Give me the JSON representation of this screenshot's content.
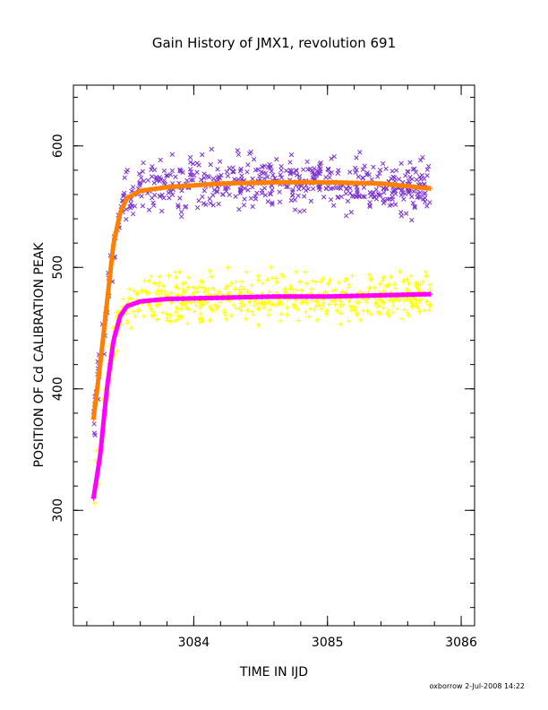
{
  "chart_data": {
    "type": "scatter",
    "title": "Gain History of JMX1, revolution 691",
    "xlabel": "TIME IN IJD",
    "ylabel": "POSITION OF Cd CALIBRATION PEAK",
    "footer": "oxborrow  2-Jul-2008 14:22",
    "xlim": [
      3083.1,
      3086.1
    ],
    "ylim": [
      205,
      650
    ],
    "x_ticks": [
      3084,
      3085,
      3086
    ],
    "x_tick_labels": [
      "3084",
      "3085",
      "3086"
    ],
    "y_ticks": [
      300,
      400,
      500,
      600
    ],
    "y_tick_labels": [
      "300",
      "400",
      "500",
      "600"
    ],
    "x_minor_step": 0.2,
    "y_minor_step": 20,
    "grid": false,
    "series": [
      {
        "marker": "x",
        "color": "#7a2fd0",
        "x_range": [
          3083.25,
          3085.77
        ],
        "n_points": 560,
        "spread": 11,
        "fit": {
          "x": [
            3083.25,
            3083.3,
            3083.35,
            3083.4,
            3083.45,
            3083.5,
            3083.6,
            3083.8,
            3084.2,
            3084.6,
            3085.0,
            3085.4,
            3085.77
          ],
          "y": [
            375,
            420,
            470,
            520,
            545,
            557,
            563,
            566,
            569,
            570,
            570,
            569,
            565
          ]
        }
      },
      {
        "marker": "+",
        "color": "#ffff00",
        "x_range": [
          3083.25,
          3085.77
        ],
        "n_points": 560,
        "spread": 10,
        "fit": {
          "x": [
            3083.25,
            3083.3,
            3083.35,
            3083.4,
            3083.45,
            3083.5,
            3083.6,
            3083.8,
            3084.2,
            3084.6,
            3085.0,
            3085.4,
            3085.77
          ],
          "y": [
            310,
            345,
            400,
            440,
            460,
            468,
            472,
            474,
            475,
            476,
            476,
            477,
            478
          ]
        }
      }
    ],
    "fit_curves": [
      {
        "color": "#ff8000",
        "x_range": [
          3083.25,
          3085.77
        ],
        "x": [
          3083.25,
          3083.3,
          3083.35,
          3083.4,
          3083.45,
          3083.5,
          3083.6,
          3083.8,
          3084.2,
          3084.6,
          3085.0,
          3085.4,
          3085.77
        ],
        "y": [
          375,
          420,
          470,
          520,
          545,
          557,
          563,
          566,
          569,
          570,
          570,
          569,
          565
        ]
      },
      {
        "color": "#ff00ff",
        "x_range": [
          3083.25,
          3085.77
        ],
        "x": [
          3083.25,
          3083.3,
          3083.35,
          3083.4,
          3083.45,
          3083.5,
          3083.6,
          3083.8,
          3084.2,
          3084.6,
          3085.0,
          3085.4,
          3085.77
        ],
        "y": [
          310,
          345,
          400,
          440,
          460,
          468,
          472,
          474,
          475,
          476,
          476,
          477,
          478
        ]
      }
    ]
  }
}
